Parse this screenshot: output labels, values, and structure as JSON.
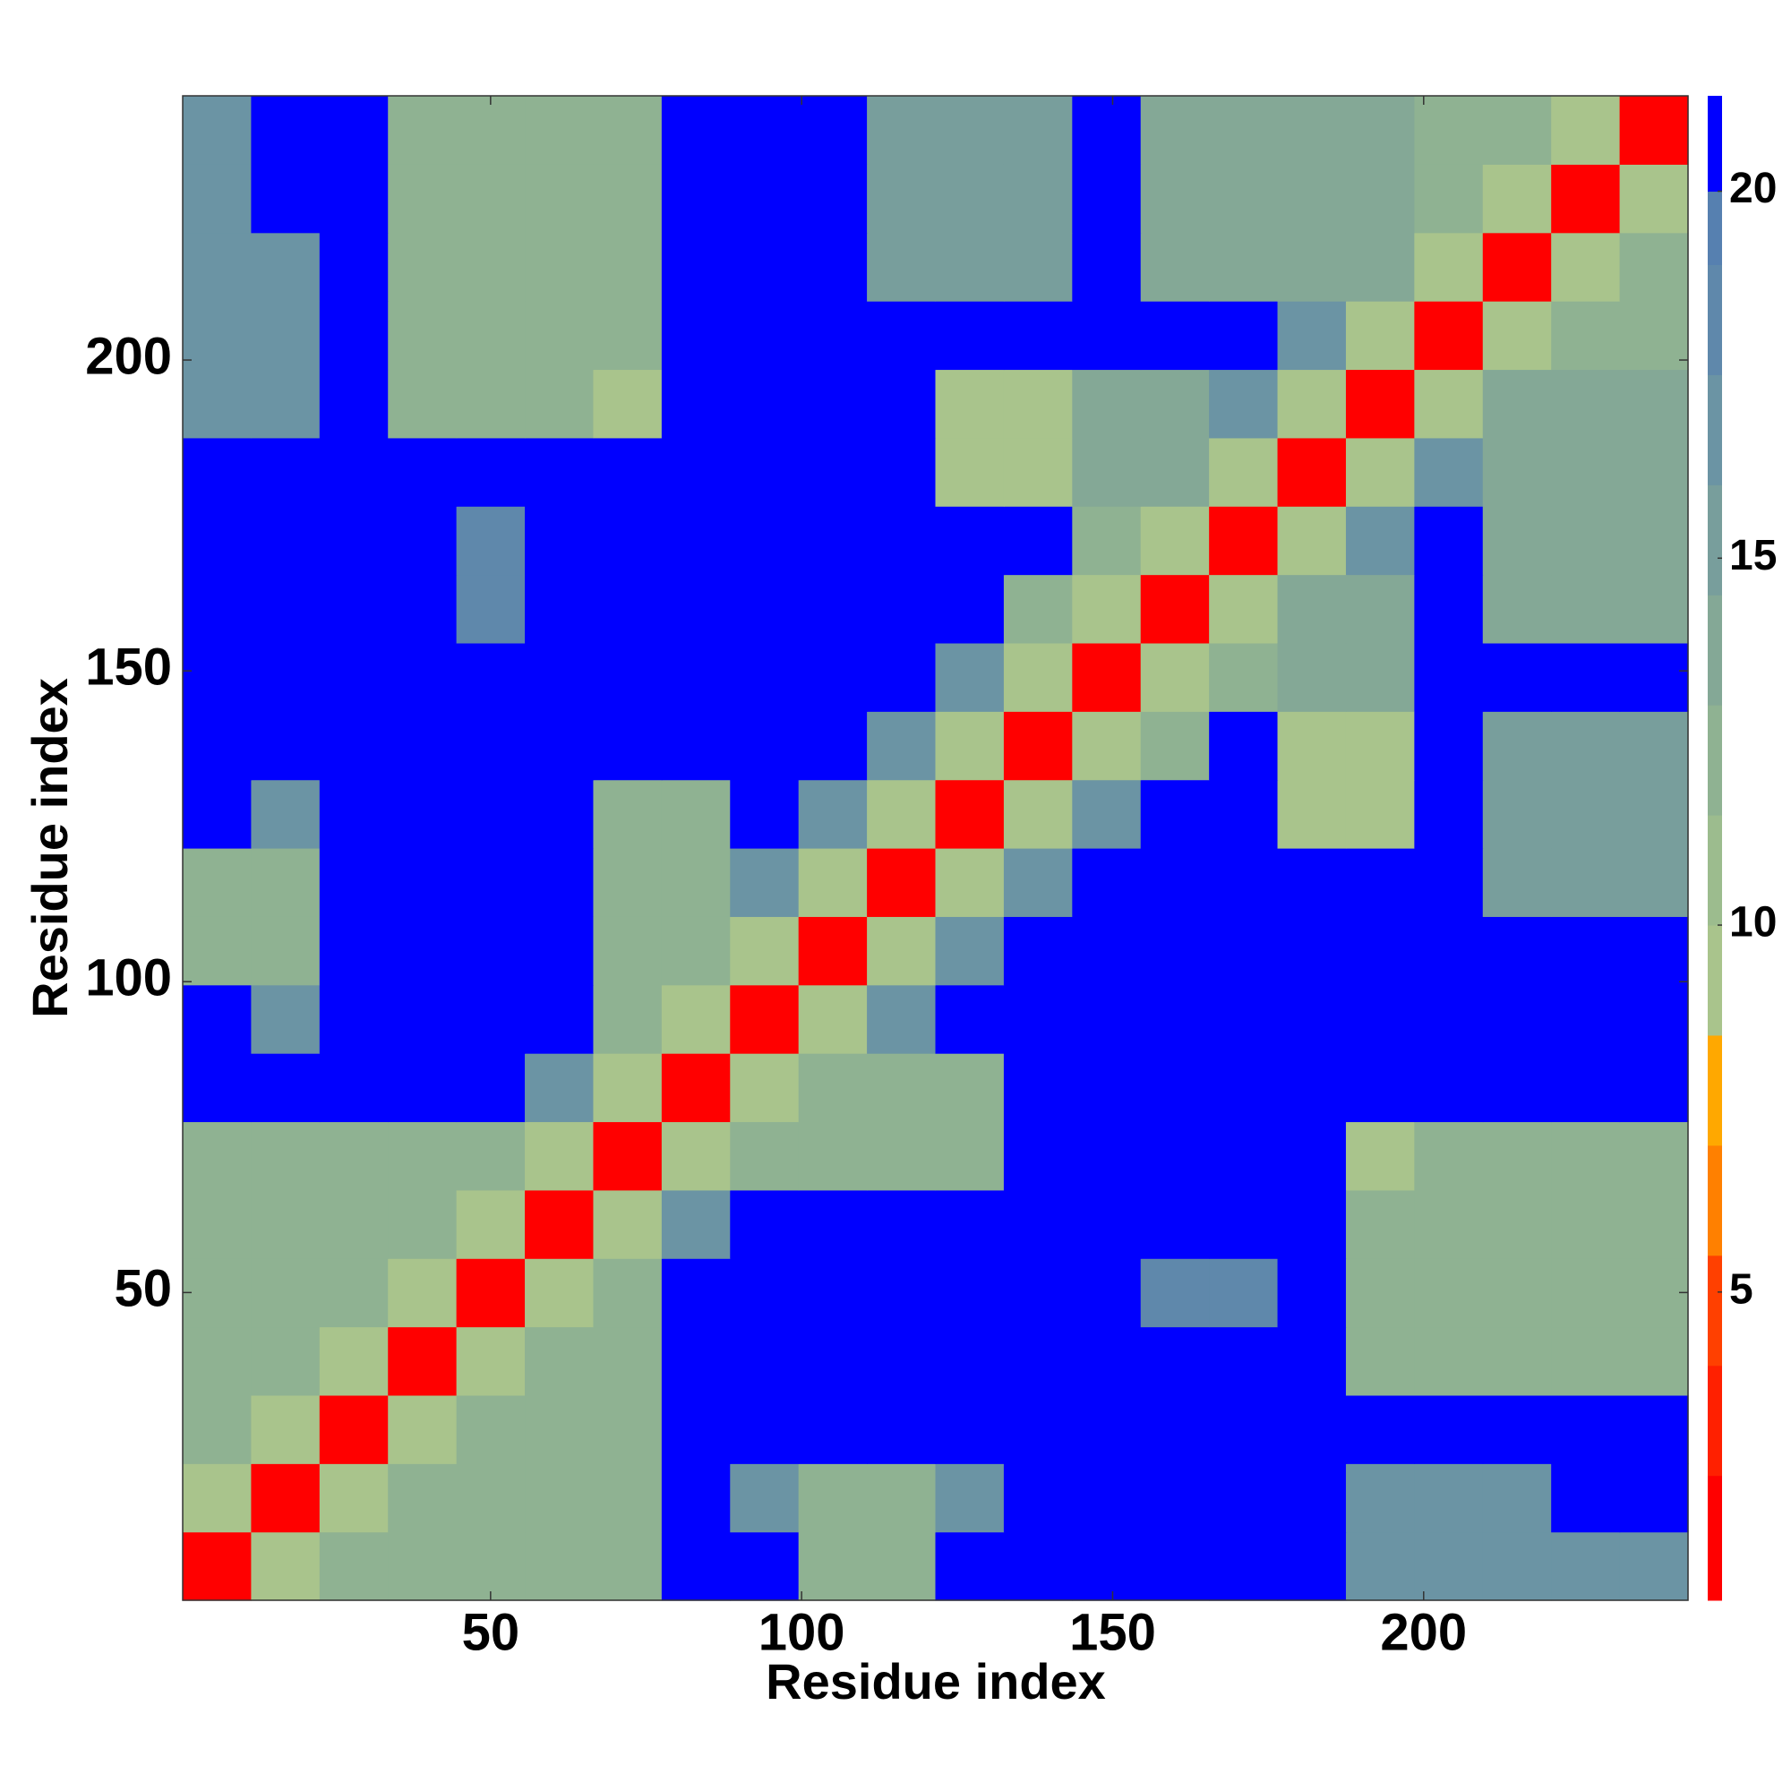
{
  "chart_data": {
    "type": "heatmap",
    "x_label": "Residue index",
    "y_label": "Residue index",
    "xlim": [
      0.5,
      242.5
    ],
    "ylim": [
      0.5,
      242.5
    ],
    "xticks": [
      50,
      100,
      150,
      200
    ],
    "yticks": [
      50,
      100,
      150,
      200
    ],
    "x": [
      6,
      17,
      28,
      39,
      50,
      61,
      72,
      83,
      94,
      105,
      116,
      127,
      138,
      149,
      160,
      171,
      182,
      193,
      204,
      215,
      226,
      237
    ],
    "y": [
      6,
      17,
      28,
      39,
      50,
      61,
      72,
      83,
      94,
      105,
      116,
      127,
      138,
      149,
      160,
      171,
      182,
      193,
      204,
      215,
      226,
      237
    ],
    "cell_size": 11,
    "z": [
      [
        2,
        9,
        12,
        12,
        12,
        12,
        12,
        21,
        21,
        13,
        13,
        21,
        21,
        21,
        21,
        21,
        21,
        17,
        17,
        17,
        17,
        17
      ],
      [
        9,
        2,
        9,
        12,
        12,
        12,
        12,
        21,
        17,
        13,
        13,
        17,
        21,
        21,
        21,
        21,
        21,
        17,
        17,
        17,
        21,
        21
      ],
      [
        12,
        9,
        2,
        9,
        12,
        12,
        12,
        21,
        21,
        21,
        21,
        21,
        21,
        21,
        21,
        21,
        21,
        21,
        21,
        21,
        21,
        21
      ],
      [
        12,
        12,
        9,
        2,
        9,
        12,
        12,
        21,
        21,
        21,
        21,
        21,
        21,
        21,
        21,
        21,
        21,
        13,
        13,
        13,
        13,
        13
      ],
      [
        12,
        12,
        12,
        9,
        2,
        9,
        12,
        21,
        21,
        21,
        21,
        21,
        21,
        21,
        18,
        18,
        21,
        13,
        13,
        13,
        13,
        13
      ],
      [
        12,
        12,
        12,
        12,
        9,
        2,
        9,
        17,
        21,
        21,
        21,
        21,
        21,
        21,
        21,
        21,
        21,
        13,
        13,
        13,
        13,
        13
      ],
      [
        12,
        12,
        12,
        12,
        12,
        9,
        2,
        9,
        13,
        13,
        13,
        13,
        21,
        21,
        21,
        21,
        21,
        9,
        13,
        13,
        13,
        13
      ],
      [
        21,
        21,
        21,
        21,
        21,
        17,
        9,
        2,
        9,
        13,
        13,
        13,
        21,
        21,
        21,
        21,
        21,
        21,
        21,
        21,
        21,
        21
      ],
      [
        21,
        17,
        21,
        21,
        21,
        21,
        13,
        9,
        2,
        9,
        17,
        21,
        21,
        21,
        21,
        21,
        21,
        21,
        21,
        21,
        21,
        21
      ],
      [
        13,
        13,
        21,
        21,
        21,
        21,
        13,
        13,
        9,
        2,
        9,
        17,
        21,
        21,
        21,
        21,
        21,
        21,
        21,
        21,
        21,
        21
      ],
      [
        13,
        13,
        21,
        21,
        21,
        21,
        13,
        13,
        17,
        9,
        2,
        9,
        17,
        21,
        21,
        21,
        21,
        21,
        21,
        15,
        15,
        15
      ],
      [
        21,
        17,
        21,
        21,
        21,
        21,
        13,
        13,
        21,
        17,
        9,
        2,
        9,
        17,
        21,
        21,
        10,
        10,
        21,
        15,
        15,
        15
      ],
      [
        21,
        21,
        21,
        21,
        21,
        21,
        21,
        21,
        21,
        21,
        17,
        9,
        2,
        9,
        13,
        21,
        10,
        10,
        21,
        15,
        15,
        15
      ],
      [
        21,
        21,
        21,
        21,
        21,
        21,
        21,
        21,
        21,
        21,
        21,
        17,
        9,
        2,
        9,
        13,
        14,
        14,
        21,
        21,
        21,
        21
      ],
      [
        21,
        21,
        21,
        21,
        18,
        21,
        21,
        21,
        21,
        21,
        21,
        21,
        13,
        9,
        2,
        9,
        14,
        14,
        21,
        14,
        14,
        14
      ],
      [
        21,
        21,
        21,
        21,
        18,
        21,
        21,
        21,
        21,
        21,
        21,
        21,
        21,
        13,
        9,
        2,
        9,
        17,
        21,
        14,
        14,
        14
      ],
      [
        21,
        21,
        21,
        21,
        21,
        21,
        21,
        21,
        21,
        21,
        21,
        10,
        10,
        14,
        14,
        9,
        2,
        9,
        17,
        14,
        14,
        14
      ],
      [
        17,
        17,
        21,
        13,
        13,
        13,
        9,
        21,
        21,
        21,
        21,
        10,
        10,
        14,
        14,
        17,
        9,
        2,
        9,
        14,
        14,
        14
      ],
      [
        17,
        17,
        21,
        13,
        13,
        13,
        13,
        21,
        21,
        21,
        21,
        21,
        21,
        21,
        21,
        21,
        17,
        9,
        2,
        9,
        13,
        13
      ],
      [
        17,
        17,
        21,
        13,
        13,
        13,
        13,
        21,
        21,
        21,
        15,
        15,
        15,
        21,
        14,
        14,
        14,
        14,
        9,
        2,
        9,
        13
      ],
      [
        17,
        21,
        21,
        13,
        13,
        13,
        13,
        21,
        21,
        21,
        15,
        15,
        15,
        21,
        14,
        14,
        14,
        14,
        13,
        9,
        2,
        9
      ],
      [
        17,
        21,
        21,
        13,
        13,
        13,
        13,
        21,
        21,
        21,
        15,
        15,
        15,
        21,
        14,
        14,
        14,
        14,
        13,
        13,
        9,
        2
      ]
    ],
    "zlim": [
      0.8,
      21.3
    ],
    "zticks": [
      5,
      10,
      15,
      20
    ],
    "color_levels": [
      0.8,
      2.5,
      4,
      5.5,
      7,
      8.5,
      10,
      11.5,
      13,
      14.5,
      16,
      17.5,
      19,
      20,
      21.3
    ],
    "colors": [
      "#ff0000",
      "#ff2000",
      "#ff4000",
      "#ff8000",
      "#ffa800",
      "#a9c48c",
      "#9cbc8e",
      "#8fb292",
      "#84a896",
      "#789e9c",
      "#6b94a4",
      "#5f88ab",
      "#5680b0",
      "#0000ff"
    ]
  }
}
